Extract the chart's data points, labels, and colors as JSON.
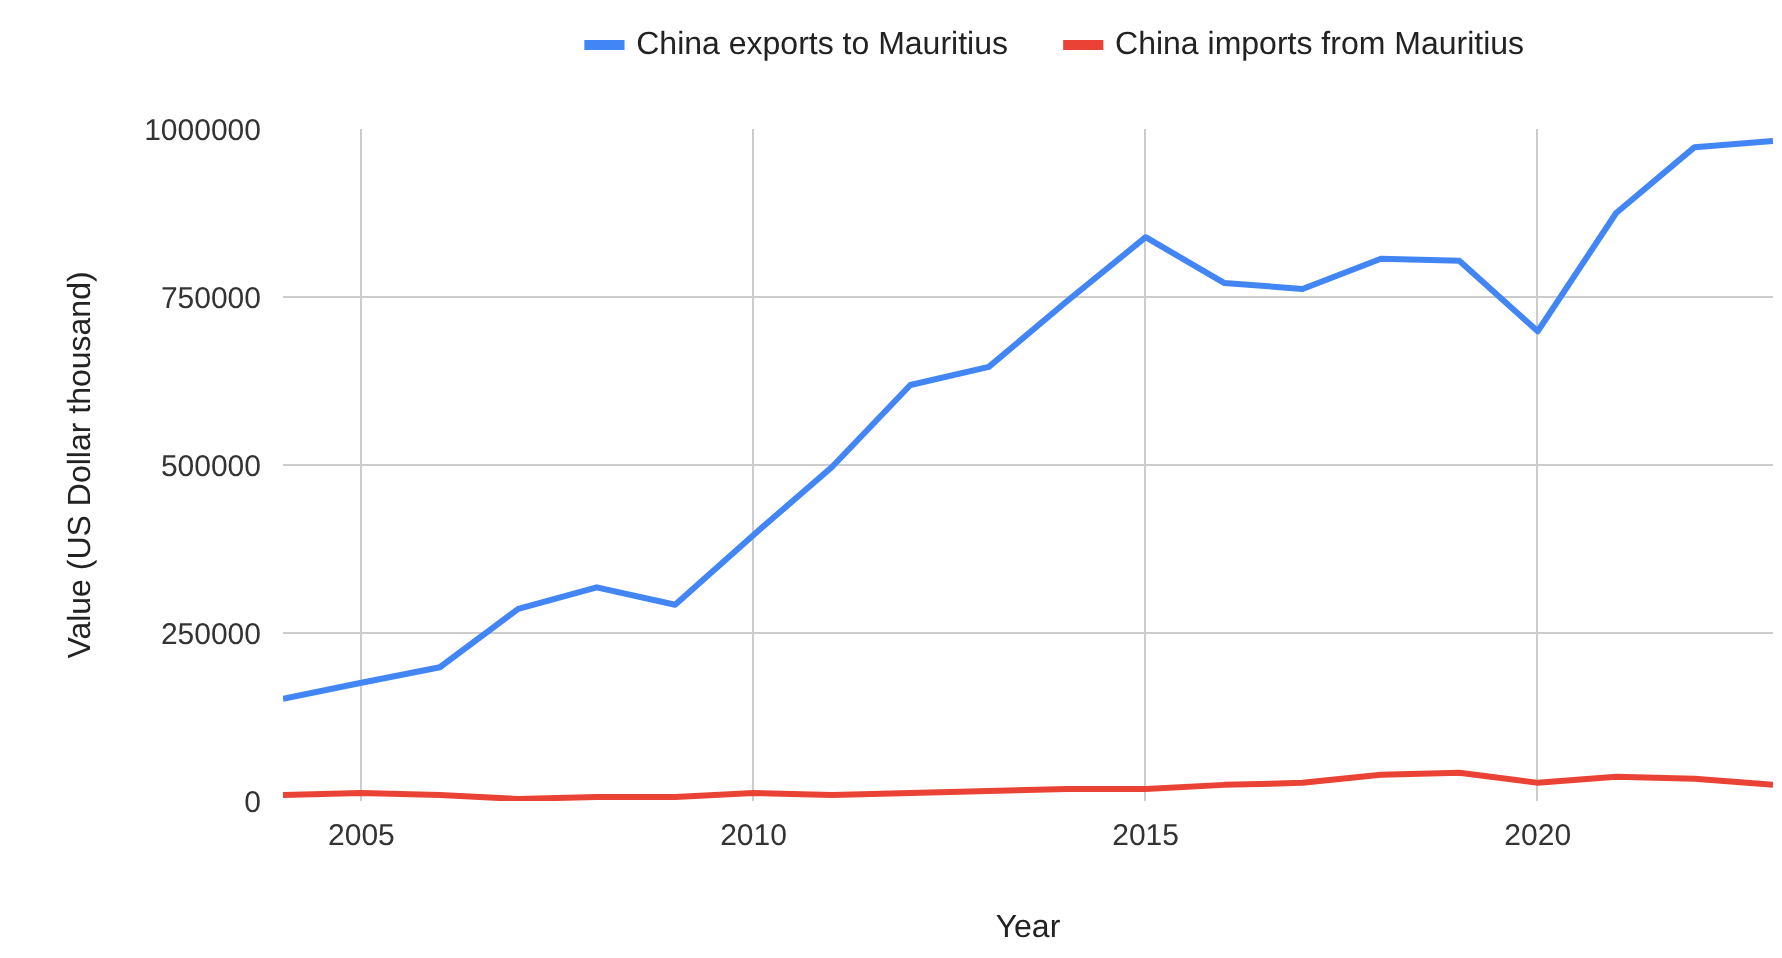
{
  "chart_data": {
    "type": "line",
    "xlabel": "Year",
    "ylabel": "Value (US Dollar thousand)",
    "x": [
      2004,
      2005,
      2006,
      2007,
      2008,
      2009,
      2010,
      2011,
      2012,
      2013,
      2014,
      2015,
      2016,
      2017,
      2018,
      2019,
      2020,
      2021,
      2022,
      2023
    ],
    "series": [
      {
        "name": "China exports to Mauritius",
        "color": "#4285f4",
        "values": [
          152000,
          176000,
          199000,
          286000,
          318000,
          292000,
          396000,
          497000,
          619000,
          646000,
          744000,
          839000,
          771000,
          762000,
          807000,
          804000,
          699000,
          875000,
          973000,
          982000
        ]
      },
      {
        "name": "China imports from Mauritius",
        "color": "#ea4335",
        "values": [
          9000,
          12000,
          9000,
          3000,
          6000,
          6000,
          12000,
          9000,
          12000,
          15000,
          18000,
          18000,
          24000,
          27000,
          39000,
          42000,
          27000,
          36000,
          33000,
          24000
        ]
      }
    ],
    "xlim": [
      2004,
      2023
    ],
    "ylim": [
      0,
      1000000
    ],
    "xticks": [
      2005,
      2010,
      2015,
      2020
    ],
    "yticks": [
      0,
      250000,
      500000,
      750000,
      1000000
    ],
    "grid": true,
    "legend": "top",
    "line_style": "solid",
    "marker": "none"
  }
}
